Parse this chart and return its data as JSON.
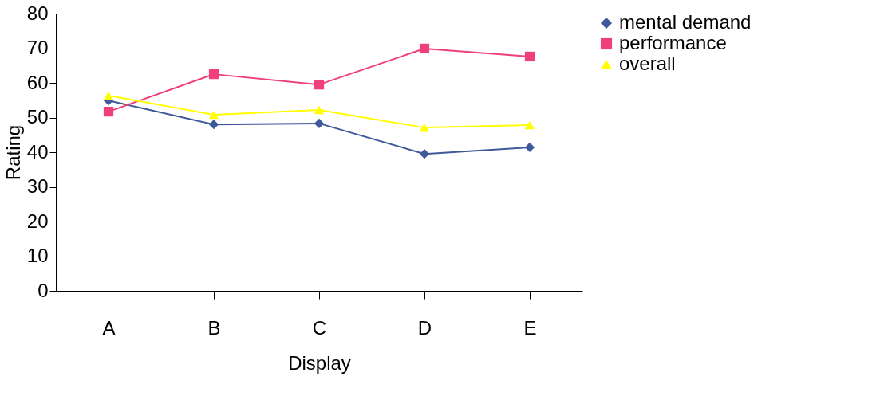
{
  "chart_data": {
    "type": "line",
    "xlabel": "Display",
    "ylabel": "Rating",
    "categories": [
      "A",
      "B",
      "C",
      "D",
      "E"
    ],
    "series": [
      {
        "name": "mental demand",
        "color": "#3f5a9a",
        "marker": "diamond",
        "values": [
          54.9,
          48.0,
          48.3,
          39.5,
          41.4
        ]
      },
      {
        "name": "performance",
        "color": "#f0407a",
        "marker": "square",
        "values": [
          51.7,
          62.5,
          59.5,
          69.9,
          67.6
        ]
      },
      {
        "name": "overall",
        "color": "#ffff00",
        "marker": "triangle",
        "values": [
          56.3,
          50.8,
          52.2,
          47.1,
          47.8
        ]
      }
    ],
    "ylim": [
      0,
      80
    ],
    "yticks": [
      0,
      10,
      20,
      30,
      40,
      50,
      60,
      70,
      80
    ],
    "grid": false,
    "legend": "right"
  }
}
